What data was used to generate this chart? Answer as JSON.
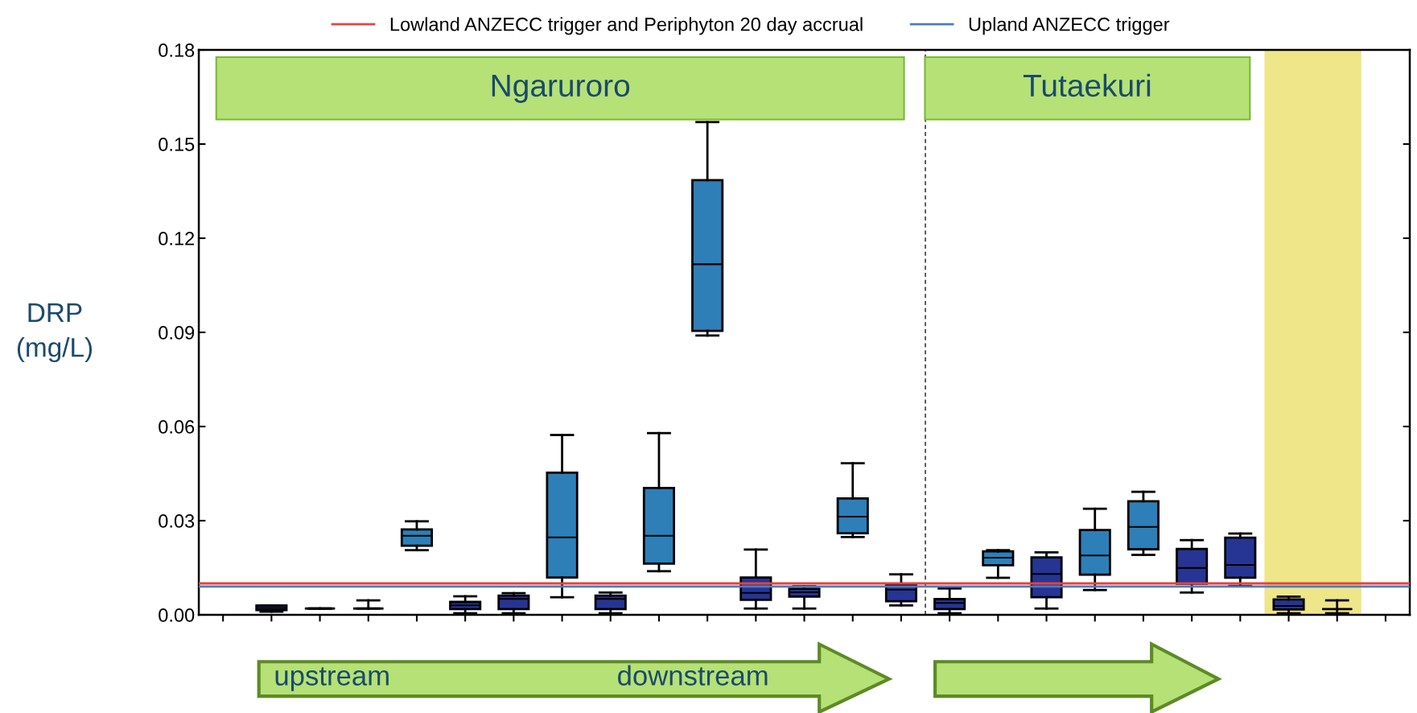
{
  "chart_data": {
    "type": "box",
    "ylabel": "DRP\n(mg/L)",
    "categories": [
      null,
      null,
      null,
      null,
      null,
      null,
      null,
      null,
      null,
      null,
      null,
      null,
      null,
      null,
      null,
      null,
      null,
      null,
      null,
      null,
      null,
      null,
      null,
      null,
      null
    ],
    "boxes": [
      null,
      {
        "low": 0.001,
        "q1": 0.0015,
        "median": 0.0022,
        "q3": 0.003,
        "high": 0.003
      },
      {
        "low": 0.002,
        "q1": 0.002,
        "median": 0.002,
        "q3": 0.002,
        "high": 0.002
      },
      {
        "low": 0.002,
        "q1": 0.002,
        "median": 0.002,
        "q3": 0.002,
        "high": 0.0046
      },
      {
        "low": 0.0206,
        "q1": 0.022,
        "median": 0.0252,
        "q3": 0.0272,
        "high": 0.0298
      },
      {
        "low": 0.0005,
        "q1": 0.0018,
        "median": 0.003,
        "q3": 0.0041,
        "high": 0.0059
      },
      {
        "low": 0.0005,
        "q1": 0.0018,
        "median": 0.0051,
        "q3": 0.0061,
        "high": 0.0069
      },
      {
        "low": 0.0056,
        "q1": 0.0119,
        "median": 0.0247,
        "q3": 0.0453,
        "high": 0.0573
      },
      {
        "low": 0.0005,
        "q1": 0.0018,
        "median": 0.0051,
        "q3": 0.0061,
        "high": 0.0071
      },
      {
        "low": 0.0139,
        "q1": 0.0163,
        "median": 0.0252,
        "q3": 0.0404,
        "high": 0.0579
      },
      {
        "low": 0.089,
        "q1": 0.0905,
        "median": 0.1117,
        "q3": 0.1385,
        "high": 0.157
      },
      {
        "low": 0.002,
        "q1": 0.0048,
        "median": 0.007,
        "q3": 0.0119,
        "high": 0.0208
      },
      {
        "low": 0.002,
        "q1": 0.0058,
        "median": 0.0072,
        "q3": 0.0083,
        "high": 0.0091
      },
      {
        "low": 0.0248,
        "q1": 0.026,
        "median": 0.0313,
        "q3": 0.0371,
        "high": 0.0483
      },
      {
        "low": 0.003,
        "q1": 0.0043,
        "median": 0.008,
        "q3": 0.0096,
        "high": 0.0129
      },
      {
        "low": 0.0005,
        "q1": 0.0018,
        "median": 0.0038,
        "q3": 0.005,
        "high": 0.0084
      },
      {
        "low": 0.0118,
        "q1": 0.0158,
        "median": 0.0182,
        "q3": 0.0202,
        "high": 0.0206
      },
      {
        "low": 0.002,
        "q1": 0.0056,
        "median": 0.013,
        "q3": 0.0183,
        "high": 0.0199
      },
      {
        "low": 0.0079,
        "q1": 0.0128,
        "median": 0.0189,
        "q3": 0.027,
        "high": 0.0338
      },
      {
        "low": 0.0191,
        "q1": 0.0209,
        "median": 0.028,
        "q3": 0.0362,
        "high": 0.0392
      },
      {
        "low": 0.0071,
        "q1": 0.0099,
        "median": 0.0149,
        "q3": 0.021,
        "high": 0.0238
      },
      {
        "low": 0.0092,
        "q1": 0.0118,
        "median": 0.0159,
        "q3": 0.0246,
        "high": 0.0259
      },
      {
        "low": 0.0005,
        "q1": 0.0017,
        "median": 0.0028,
        "q3": 0.0049,
        "high": 0.0058
      },
      {
        "low": 0.0005,
        "q1": 0.0018,
        "median": 0.0018,
        "q3": 0.0018,
        "high": 0.0046
      },
      null
    ],
    "colors": [
      null,
      "#263594",
      null,
      null,
      "#2e7fb8",
      "#263594",
      "#263594",
      "#2e7fb8",
      "#263594",
      "#2e7fb8",
      "#2e7fb8",
      "#263594",
      "#263594",
      "#2e7fb8",
      "#263594",
      "#263594",
      "#2e7fb8",
      "#263594",
      "#2e7fb8",
      "#2e7fb8",
      "#263594",
      "#263594",
      "#263594",
      null,
      null
    ],
    "ylim": [
      0,
      0.18
    ],
    "yticks": [
      {
        "value": 0,
        "label": "0.00"
      },
      0.03,
      0.06,
      0.09,
      0.12,
      0.15,
      0.18
    ],
    "tick_labels": "y",
    "grid": false,
    "legend": "top",
    "ref_lines": [
      {
        "axis": "y",
        "value": 0.01,
        "label": "Lowland ANZECC trigger and Periphyton 20 day accrual",
        "color": "#e8413a"
      },
      {
        "axis": "y",
        "value": 0.009,
        "label": "Upland ANZECC trigger",
        "color": "#4a7cc4"
      }
    ],
    "annotations": [
      "Ngaruroro",
      "Tutaekuri",
      "upstream",
      "downstream"
    ]
  }
}
